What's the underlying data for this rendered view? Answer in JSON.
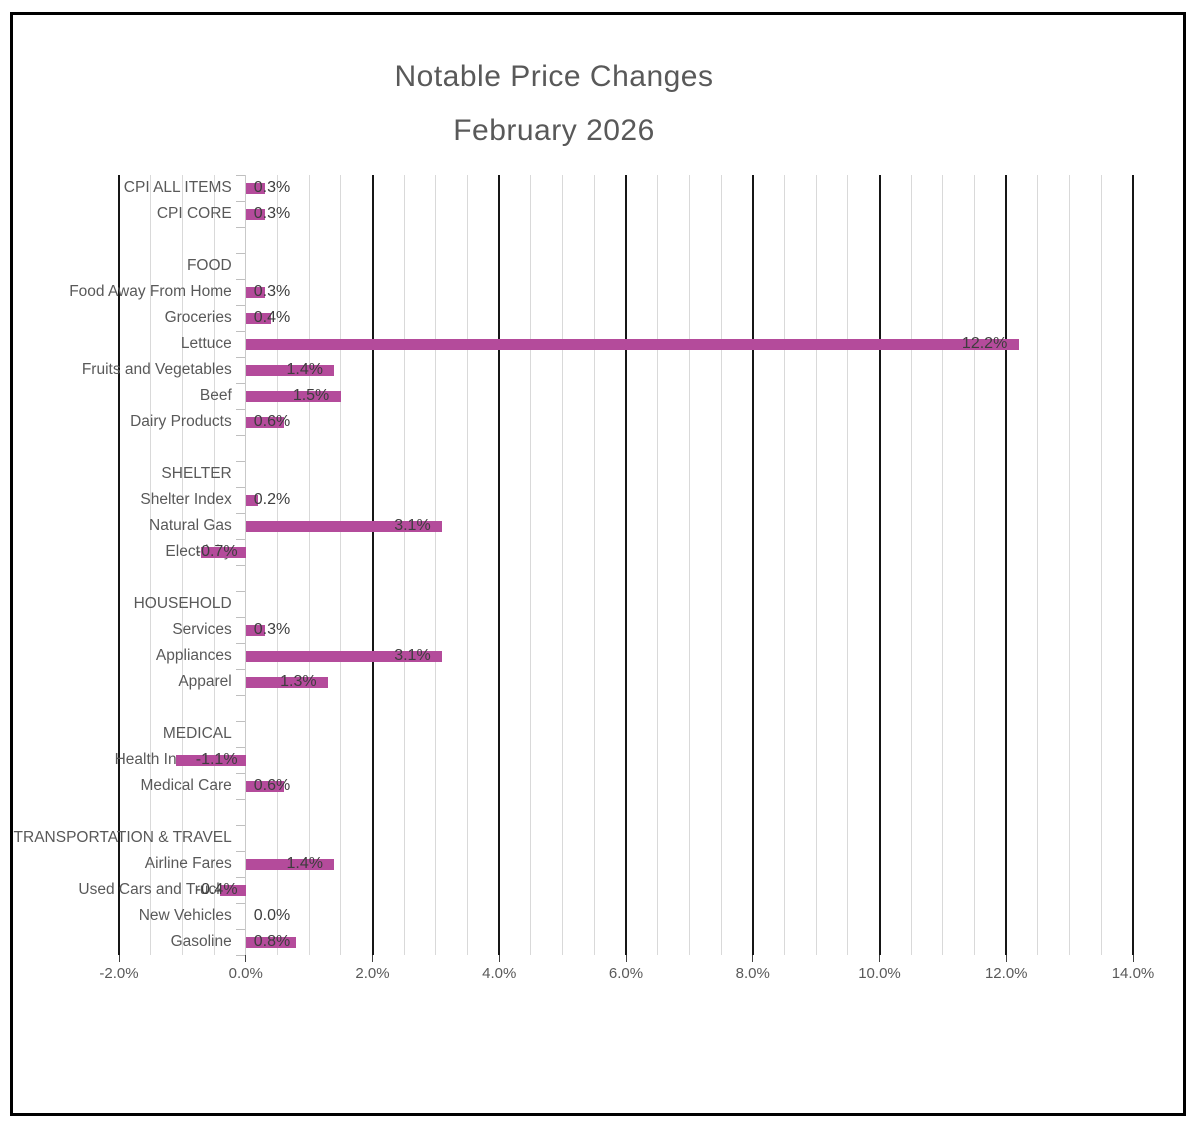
{
  "chart_data": {
    "type": "bar",
    "orientation": "horizontal",
    "title": "Notable Price Changes February 2026",
    "title_line1": "Notable Price Changes",
    "title_line2": "February 2026",
    "legend": "none",
    "grid": {
      "major_visible": true,
      "minor_visible": true
    },
    "x_axis": {
      "min": -2.0,
      "max": 14.0,
      "major_step": 2.0,
      "minor_step": 0.5,
      "tick_labels": [
        "-2.0%",
        "0.0%",
        "2.0%",
        "4.0%",
        "6.0%",
        "8.0%",
        "10.0%",
        "12.0%",
        "14.0%"
      ]
    },
    "rows": [
      {
        "kind": "item",
        "label": "CPI ALL ITEMS",
        "value": 0.3,
        "display": "0.3%"
      },
      {
        "kind": "item",
        "label": "CPI CORE",
        "value": 0.3,
        "display": "0.3%"
      },
      {
        "kind": "spacer",
        "label": ""
      },
      {
        "kind": "header",
        "label": "FOOD"
      },
      {
        "kind": "item",
        "label": "Food Away From Home",
        "value": 0.3,
        "display": "0.3%"
      },
      {
        "kind": "item",
        "label": "Groceries",
        "value": 0.4,
        "display": "0.4%"
      },
      {
        "kind": "item",
        "label": "Lettuce",
        "value": 12.2,
        "display": "12.2%"
      },
      {
        "kind": "item",
        "label": "Fruits and Vegetables",
        "value": 1.4,
        "display": "1.4%"
      },
      {
        "kind": "item",
        "label": "Beef",
        "value": 1.5,
        "display": "1.5%"
      },
      {
        "kind": "item",
        "label": "Dairy Products",
        "value": 0.6,
        "display": "0.6%"
      },
      {
        "kind": "spacer",
        "label": ""
      },
      {
        "kind": "header",
        "label": "SHELTER"
      },
      {
        "kind": "item",
        "label": "Shelter Index",
        "value": 0.2,
        "display": "0.2%"
      },
      {
        "kind": "item",
        "label": "Natural Gas",
        "value": 3.1,
        "display": "3.1%"
      },
      {
        "kind": "item",
        "label": "Electricity",
        "value": -0.7,
        "display": "-0.7%"
      },
      {
        "kind": "spacer",
        "label": ""
      },
      {
        "kind": "header",
        "label": "HOUSEHOLD"
      },
      {
        "kind": "item",
        "label": "Services",
        "value": 0.3,
        "display": "0.3%"
      },
      {
        "kind": "item",
        "label": "Appliances",
        "value": 3.1,
        "display": "3.1%"
      },
      {
        "kind": "item",
        "label": "Apparel",
        "value": 1.3,
        "display": "1.3%"
      },
      {
        "kind": "spacer",
        "label": ""
      },
      {
        "kind": "header",
        "label": "MEDICAL"
      },
      {
        "kind": "item",
        "label": "Health Insurance",
        "value": -1.1,
        "display": "-1.1%"
      },
      {
        "kind": "item",
        "label": "Medical Care",
        "value": 0.6,
        "display": "0.6%"
      },
      {
        "kind": "spacer",
        "label": ""
      },
      {
        "kind": "header",
        "label": "TRANSPORTATION & TRAVEL"
      },
      {
        "kind": "item",
        "label": "Airline Fares",
        "value": 1.4,
        "display": "1.4%"
      },
      {
        "kind": "item",
        "label": "Used Cars and Trucks",
        "value": -0.4,
        "display": "-0.4%"
      },
      {
        "kind": "item",
        "label": "New Vehicles",
        "value": 0.0,
        "display": "0.0%"
      },
      {
        "kind": "item",
        "label": "Gasoline",
        "value": 0.8,
        "display": "0.8%"
      }
    ],
    "colors": {
      "bar": "#b44b9b",
      "title_text": "#595959",
      "category_text": "#595959",
      "data_label_text": "#3d3d3d",
      "axis_label_text": "#595959",
      "major_gridline": "#161616",
      "minor_gridline": "#d9d9d9",
      "figure_border": "#000000",
      "background": "#ffffff"
    }
  }
}
